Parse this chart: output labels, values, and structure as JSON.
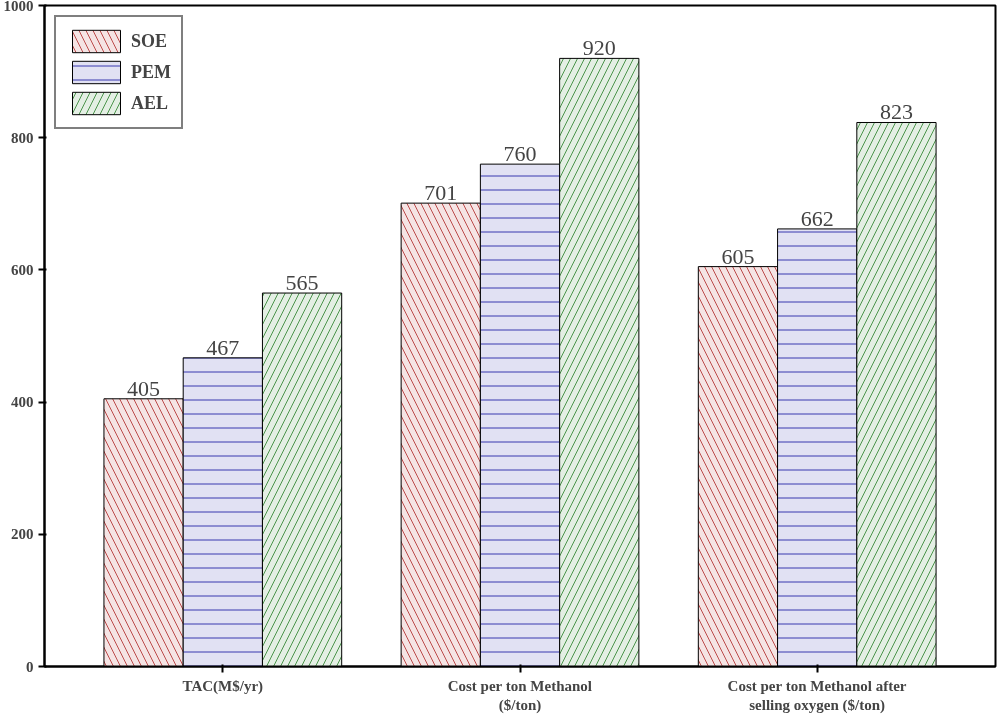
{
  "chart_data": {
    "type": "bar",
    "categories": [
      "TAC(M$/yr)",
      "Cost per ton Methanol ($/ton)",
      "Cost per ton Methanol after selling oxygen ($/ton)"
    ],
    "series": [
      {
        "name": "SOE",
        "color": "#f5e4e4",
        "values": [
          405,
          701,
          605
        ]
      },
      {
        "name": "PEM",
        "color": "#e1e1f3",
        "values": [
          467,
          760,
          662
        ]
      },
      {
        "name": "AEL",
        "color": "#e4efe4",
        "values": [
          565,
          920,
          823
        ]
      }
    ],
    "ylim": [
      0,
      1000
    ],
    "yticks": [
      0,
      200,
      400,
      600,
      800,
      1000
    ],
    "grid": false,
    "legend": "top left",
    "data_labels": true
  }
}
